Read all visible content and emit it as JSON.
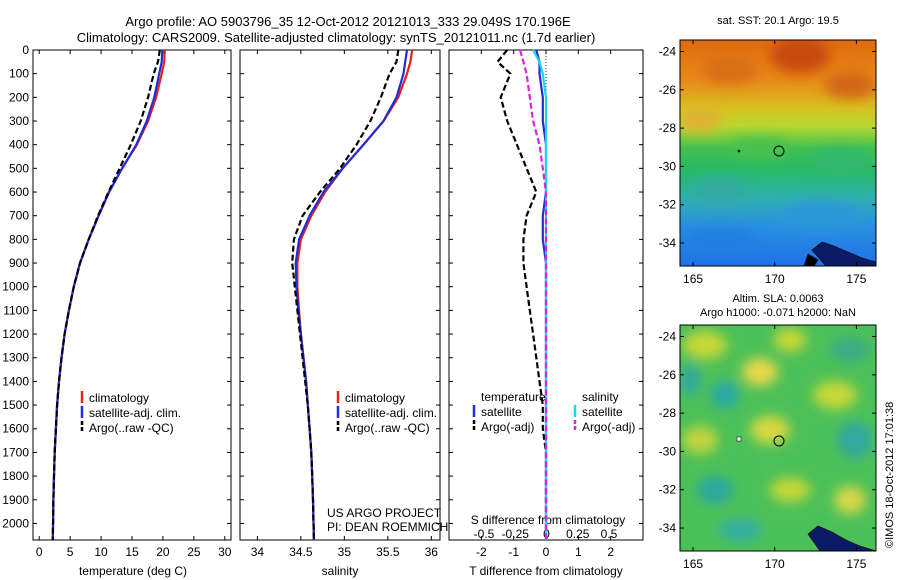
{
  "header": {
    "line1": "Argo profile: AO 5903796_35 12-Oct-2012 20121013_333 29.049S 170.196E",
    "line2": "Climatology: CARS2009. Satellite-adjusted climatology: synTS_20121011.nc (1.7d earlier)"
  },
  "depth_ticks": [
    "0",
    "100",
    "200",
    "300",
    "400",
    "500",
    "600",
    "700",
    "800",
    "900",
    "1000",
    "1100",
    "1200",
    "1300",
    "1400",
    "1500",
    "1600",
    "1700",
    "1800",
    "1900",
    "2000"
  ],
  "colors": {
    "climatology": "#e8201c",
    "satellite": "#1f2dd6",
    "argo": "#000000",
    "salinity_sat": "#18d8e8",
    "salinity_argo": "#e020e0"
  },
  "panel_temp": {
    "xlabel": "temperature (deg C)",
    "xticks": [
      "0",
      "5",
      "10",
      "15",
      "20",
      "25",
      "30"
    ],
    "legend": [
      "climatology",
      "satellite-adj. clim.",
      "Argo(..raw -QC)"
    ]
  },
  "panel_sal": {
    "xlabel": "salinity",
    "xticks": [
      "34",
      "34.5",
      "35",
      "35.5",
      "36"
    ],
    "legend": [
      "climatology",
      "satellite-adj. clim.",
      "Argo(..raw -QC)"
    ],
    "credit1": "US ARGO PROJECT",
    "credit2": "PI: DEAN ROEMMICH"
  },
  "panel_diff": {
    "xlabel": "T difference from climatology",
    "xticks": [
      "-2",
      "-1",
      "0",
      "1",
      "2"
    ],
    "top_label": "S difference from climatology",
    "top_ticks": [
      "-0.5",
      "-0.25",
      "0",
      "0.25",
      "0.5"
    ],
    "legend_temp_title": "temperature",
    "legend_sal_title": "salinity",
    "legend_items": [
      "satellite",
      "Argo(-adj)",
      "satellite",
      "Argo(-adj)"
    ]
  },
  "map_sst": {
    "title": "sat. SST: 20.1  Argo: 19.5",
    "yticks": [
      "-24",
      "-26",
      "-28",
      "-30",
      "-32",
      "-34"
    ],
    "xticks": [
      "165",
      "170",
      "175"
    ]
  },
  "map_sla": {
    "title1": "Altim. SLA: 0.0063",
    "title2": "Argo h1000: -0.071  h2000: NaN",
    "yticks": [
      "-24",
      "-26",
      "-28",
      "-30",
      "-32",
      "-34"
    ],
    "xticks": [
      "165",
      "170",
      "175"
    ],
    "side_label": "©IMOS 18-Oct-2012 17:01:38"
  },
  "chart_data": [
    {
      "type": "line",
      "name": "temperature profile",
      "xlabel": "temperature (deg C)",
      "ylabel": "",
      "xlim": [
        -1,
        31
      ],
      "ylim": [
        2070,
        0
      ],
      "series": [
        {
          "name": "climatology",
          "x": [
            20.3,
            20.2,
            19.8,
            18.9,
            17.6,
            15.8,
            13.4,
            11.3,
            9.6,
            8.0,
            6.6,
            5.6,
            4.8,
            4.1,
            3.6,
            3.2,
            2.9,
            2.7,
            2.5,
            2.4,
            2.3,
            2.2
          ],
          "y": [
            0,
            50,
            100,
            200,
            300,
            400,
            500,
            600,
            700,
            800,
            900,
            1000,
            1100,
            1200,
            1300,
            1400,
            1500,
            1600,
            1700,
            1800,
            1900,
            2070
          ]
        },
        {
          "name": "satellite-adj. clim.",
          "x": [
            19.9,
            19.8,
            19.4,
            18.6,
            17.4,
            15.7,
            13.4,
            11.3,
            9.6,
            8.0,
            6.6,
            5.6,
            4.8,
            4.1,
            3.6,
            3.2,
            2.9,
            2.7,
            2.5,
            2.4,
            2.3,
            2.2
          ],
          "y": [
            0,
            50,
            100,
            200,
            300,
            400,
            500,
            600,
            700,
            800,
            900,
            1000,
            1100,
            1200,
            1300,
            1400,
            1500,
            1600,
            1700,
            1800,
            1900,
            2070
          ]
        },
        {
          "name": "Argo(..raw -QC)",
          "x": [
            19.5,
            19.2,
            18.5,
            17.6,
            16.4,
            14.8,
            13.0,
            11.2,
            9.5,
            8.0,
            6.6,
            5.6,
            4.8,
            4.1,
            3.6,
            3.2,
            2.9,
            2.7,
            2.5,
            2.4,
            2.3,
            2.2
          ],
          "y": [
            0,
            50,
            100,
            200,
            300,
            400,
            500,
            600,
            700,
            800,
            900,
            1000,
            1100,
            1200,
            1300,
            1400,
            1500,
            1600,
            1700,
            1800,
            1900,
            2070
          ]
        }
      ]
    },
    {
      "type": "line",
      "name": "salinity profile",
      "xlabel": "salinity",
      "xlim": [
        33.8,
        36.1
      ],
      "ylim": [
        2070,
        0
      ],
      "series": [
        {
          "name": "climatology",
          "x": [
            35.78,
            35.76,
            35.72,
            35.62,
            35.45,
            35.22,
            34.98,
            34.78,
            34.62,
            34.5,
            34.46,
            34.46,
            34.48,
            34.5,
            34.53,
            34.56,
            34.58,
            34.6,
            34.62,
            34.63,
            34.64,
            34.65
          ],
          "y": [
            0,
            50,
            100,
            200,
            300,
            400,
            500,
            600,
            700,
            800,
            900,
            1000,
            1100,
            1200,
            1300,
            1400,
            1500,
            1600,
            1700,
            1800,
            1900,
            2070
          ]
        },
        {
          "name": "satellite-adj. clim.",
          "x": [
            35.72,
            35.7,
            35.68,
            35.6,
            35.45,
            35.22,
            34.98,
            34.76,
            34.6,
            34.48,
            34.44,
            34.45,
            34.47,
            34.5,
            34.53,
            34.56,
            34.58,
            34.6,
            34.62,
            34.63,
            34.64,
            34.65
          ],
          "y": [
            0,
            50,
            100,
            200,
            300,
            400,
            500,
            600,
            700,
            800,
            900,
            1000,
            1100,
            1200,
            1300,
            1400,
            1500,
            1600,
            1700,
            1800,
            1900,
            2070
          ]
        },
        {
          "name": "Argo(..raw -QC)",
          "x": [
            35.62,
            35.6,
            35.52,
            35.42,
            35.3,
            35.14,
            34.95,
            34.72,
            34.52,
            34.42,
            34.4,
            34.43,
            34.46,
            34.49,
            34.52,
            34.55,
            34.58,
            34.6,
            34.62,
            34.63,
            34.64,
            34.65
          ],
          "y": [
            0,
            50,
            100,
            200,
            300,
            400,
            500,
            600,
            700,
            800,
            900,
            1000,
            1100,
            1200,
            1300,
            1400,
            1500,
            1600,
            1700,
            1800,
            1900,
            2070
          ]
        }
      ]
    },
    {
      "type": "line",
      "name": "difference from climatology",
      "xlabel": "T difference from climatology",
      "xlim": [
        -3,
        3
      ],
      "ylim": [
        2070,
        0
      ],
      "series": [
        {
          "name": "temperature satellite",
          "x": [
            -0.3,
            -0.2,
            -0.2,
            -0.1,
            -0.1,
            0.0,
            0.0,
            0.0,
            -0.1,
            -0.1,
            0.0,
            0.0,
            0.0,
            0.0,
            0.0,
            0.0,
            0.0,
            0.0,
            0.0,
            0.0,
            0.0
          ],
          "y": [
            0,
            50,
            100,
            200,
            300,
            400,
            500,
            600,
            700,
            800,
            900,
            1000,
            1100,
            1200,
            1300,
            1400,
            1500,
            1600,
            1700,
            1800,
            2070
          ]
        },
        {
          "name": "temperature Argo(-adj)",
          "x": [
            -1.2,
            -1.5,
            -1.1,
            -1.4,
            -1.2,
            -0.9,
            -0.6,
            -0.3,
            -0.6,
            -0.7,
            -0.7,
            -0.6,
            -0.5,
            -0.4,
            -0.3,
            -0.2,
            -0.1,
            -0.1,
            0.0,
            0.0,
            0.0
          ],
          "y": [
            0,
            50,
            100,
            200,
            300,
            400,
            500,
            600,
            700,
            800,
            900,
            1000,
            1100,
            1200,
            1300,
            1400,
            1500,
            1600,
            1700,
            1800,
            2070
          ]
        },
        {
          "name": "salinity satellite",
          "x": [
            -0.4,
            -0.2,
            -0.1,
            0.0,
            0.0,
            0.0,
            0.0,
            0.0,
            0.0,
            0.0,
            0.0,
            0.0,
            0.0,
            0.0,
            0.0,
            0.0,
            0.0,
            0.0,
            0.0,
            0.0,
            0.0
          ],
          "y": [
            0,
            50,
            100,
            200,
            300,
            400,
            500,
            600,
            700,
            800,
            900,
            1000,
            1100,
            1200,
            1300,
            1400,
            1500,
            1600,
            1700,
            1800,
            2070
          ]
        },
        {
          "name": "salinity Argo(-adj)",
          "x": [
            -0.8,
            -0.7,
            -0.6,
            -0.5,
            -0.4,
            -0.2,
            -0.1,
            0.0,
            0.0,
            0.0,
            0.0,
            0.0,
            0.0,
            0.0,
            0.0,
            0.0,
            0.0,
            0.0,
            0.0,
            0.0,
            0.0
          ],
          "y": [
            0,
            50,
            100,
            200,
            300,
            400,
            500,
            600,
            700,
            800,
            900,
            1000,
            1100,
            1200,
            1300,
            1400,
            1500,
            1600,
            1700,
            1800,
            2070
          ]
        }
      ]
    },
    {
      "type": "heatmap",
      "name": "sat. SST map",
      "xlim": [
        164.2,
        176.2
      ],
      "ylim": [
        -35.2,
        -23.4
      ],
      "argo_position": [
        170.2,
        -29.05
      ]
    },
    {
      "type": "heatmap",
      "name": "Altim. SLA map",
      "xlim": [
        164.2,
        176.2
      ],
      "ylim": [
        -35.2,
        -23.4
      ],
      "argo_position": [
        170.2,
        -29.05
      ]
    }
  ]
}
